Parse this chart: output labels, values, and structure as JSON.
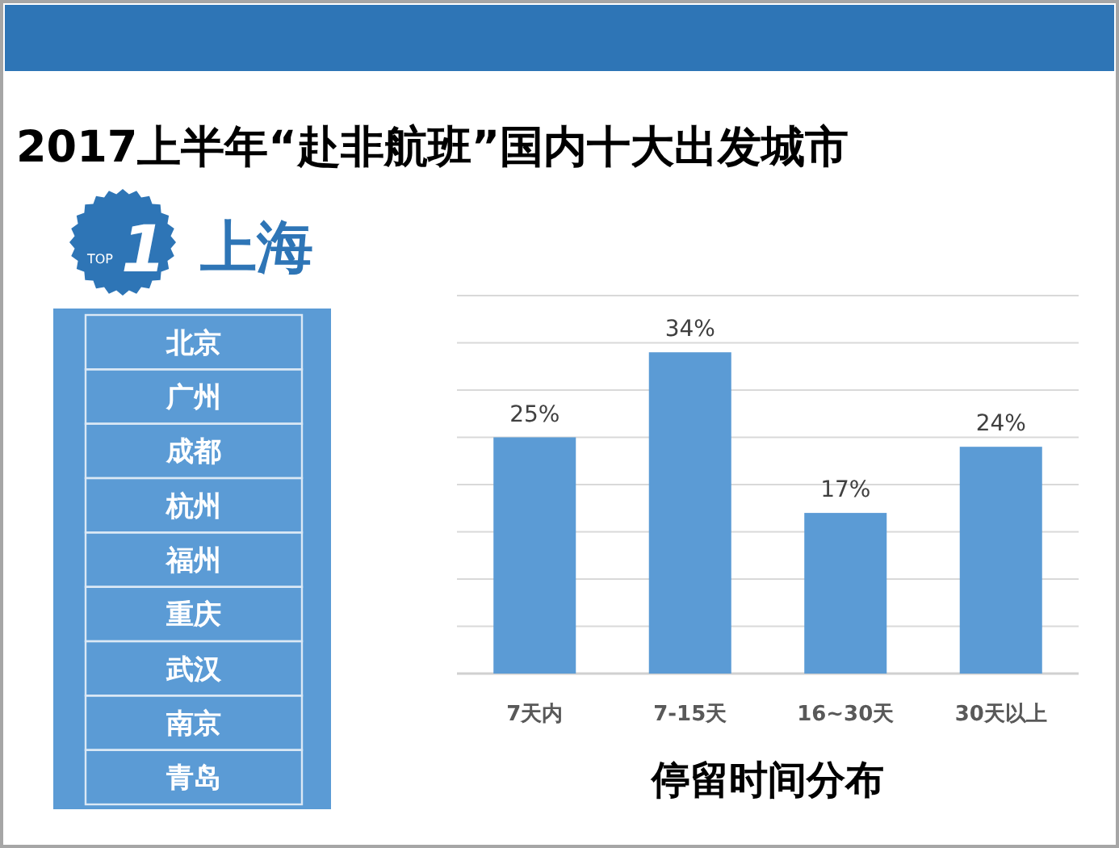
{
  "chart_data": [
    {
      "type": "other",
      "title": "2017上半年“赴非航班”国内十大出发城市",
      "annotations": [
        "TOP",
        "1",
        "上海"
      ],
      "categories": [
        "北京",
        "广州",
        "成都",
        "杭州",
        "福州",
        "重庆",
        "武汉",
        "南京",
        "青岛"
      ],
      "color": "#5b9bd5"
    },
    {
      "type": "bar",
      "categories": [
        "7天内",
        "7-15天",
        "16~30天",
        "30天以上"
      ],
      "values": [
        25,
        34,
        17,
        24
      ],
      "color": "#5b9bd5",
      "value_labels": [
        "25%",
        "34%",
        "17%",
        "24%"
      ],
      "ylim": [
        0,
        40
      ],
      "yticks": [
        {
          "value": 0,
          "label": null
        },
        {
          "value": 5,
          "label": null
        },
        {
          "value": 10,
          "label": null
        },
        {
          "value": 15,
          "label": null
        },
        {
          "value": 20,
          "label": null
        },
        {
          "value": 25,
          "label": null
        },
        {
          "value": 30,
          "label": null
        },
        {
          "value": 35,
          "label": null
        },
        {
          "value": 40,
          "label": null
        }
      ],
      "grid": "y",
      "tick_labels": "x",
      "xlabel": "停留时间分布"
    }
  ]
}
